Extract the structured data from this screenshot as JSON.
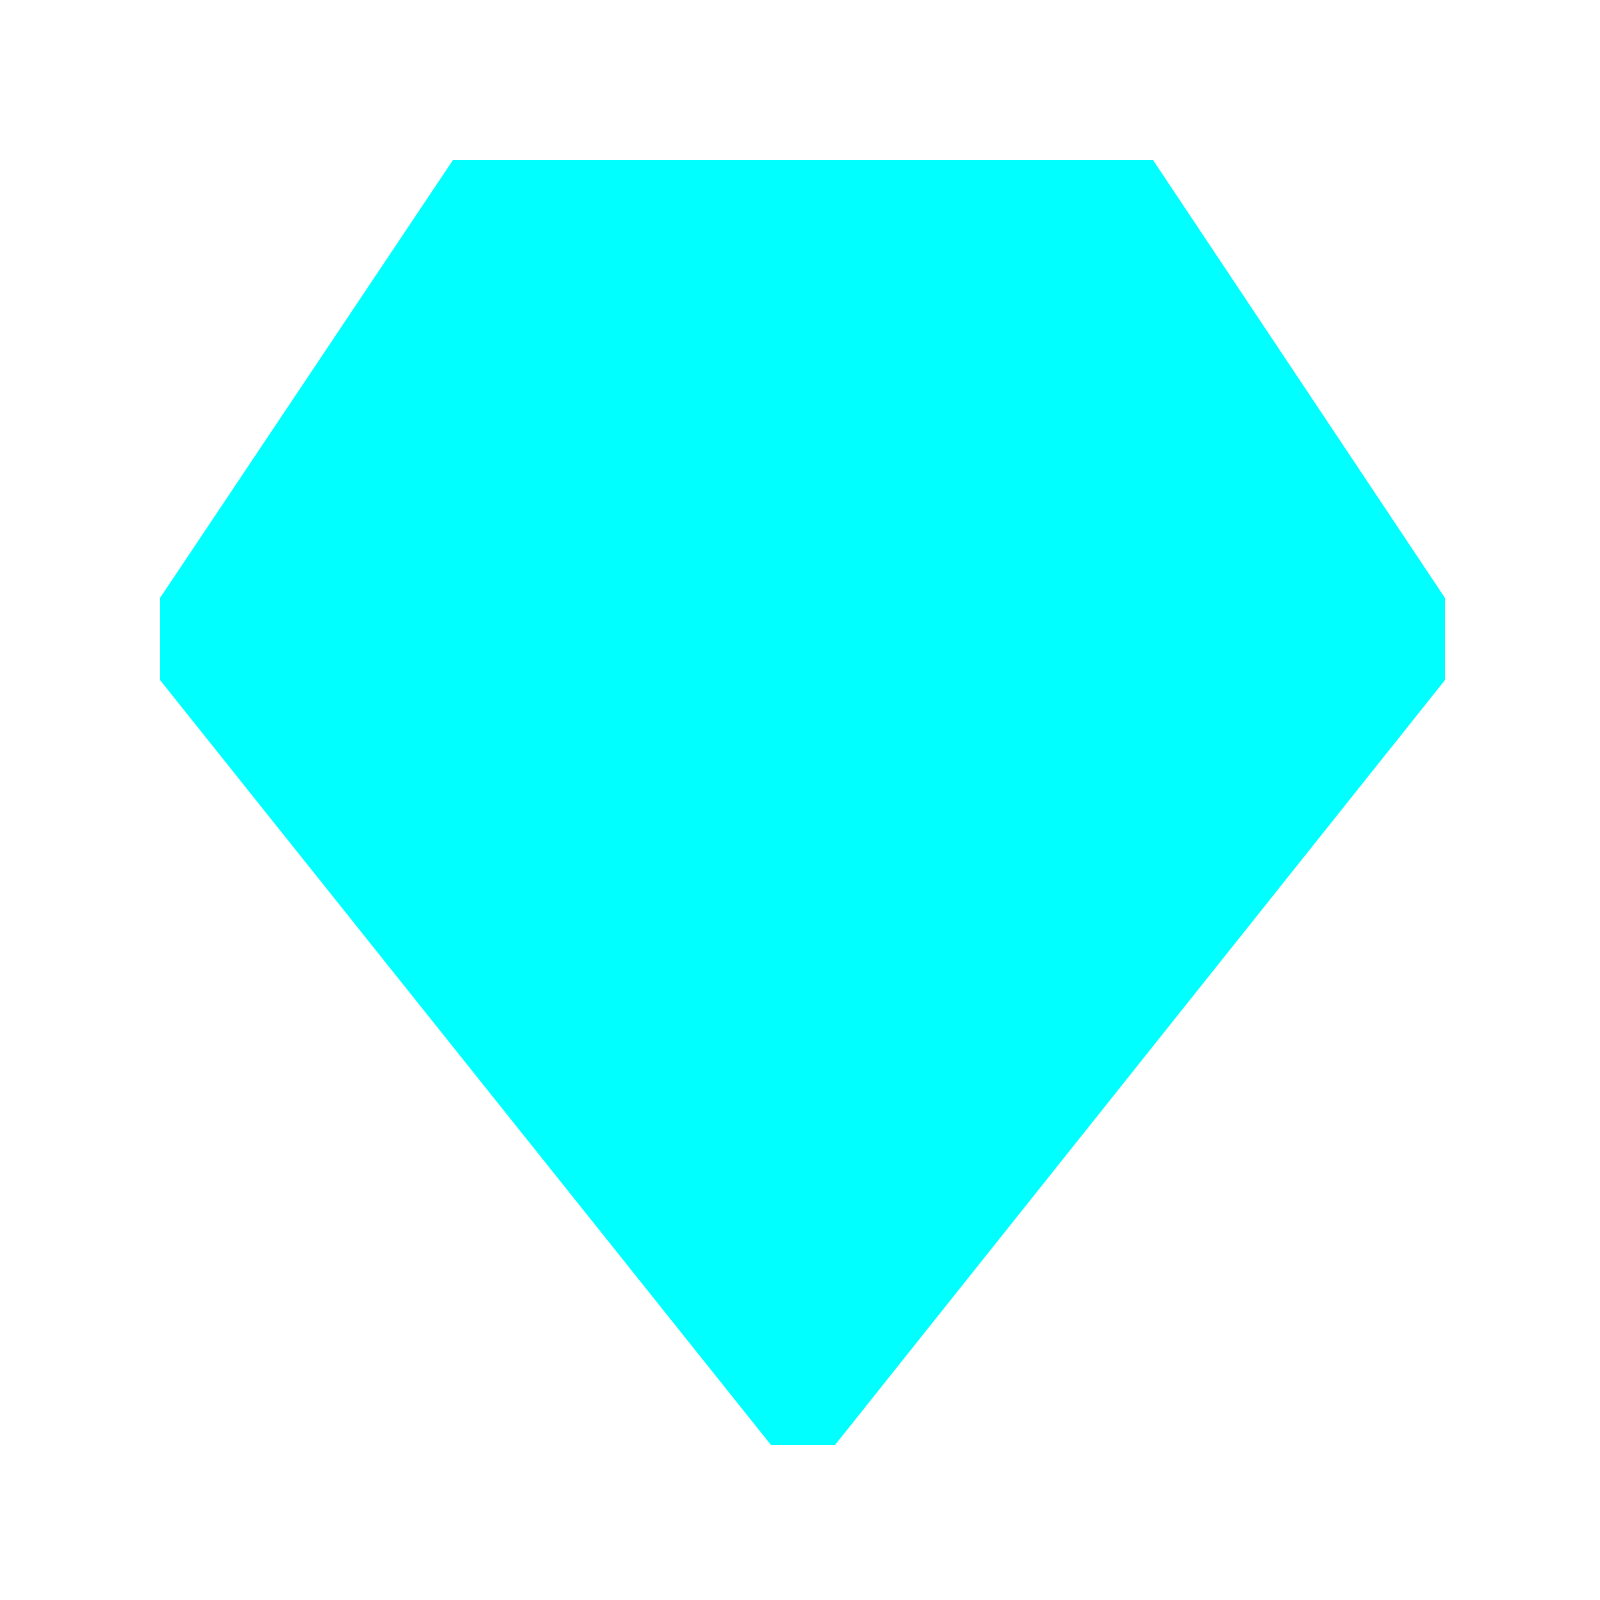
{
  "background_color": "#ffffff",
  "shape": {
    "kind": "gem-polygon",
    "fill_color": "#00ffff"
  }
}
